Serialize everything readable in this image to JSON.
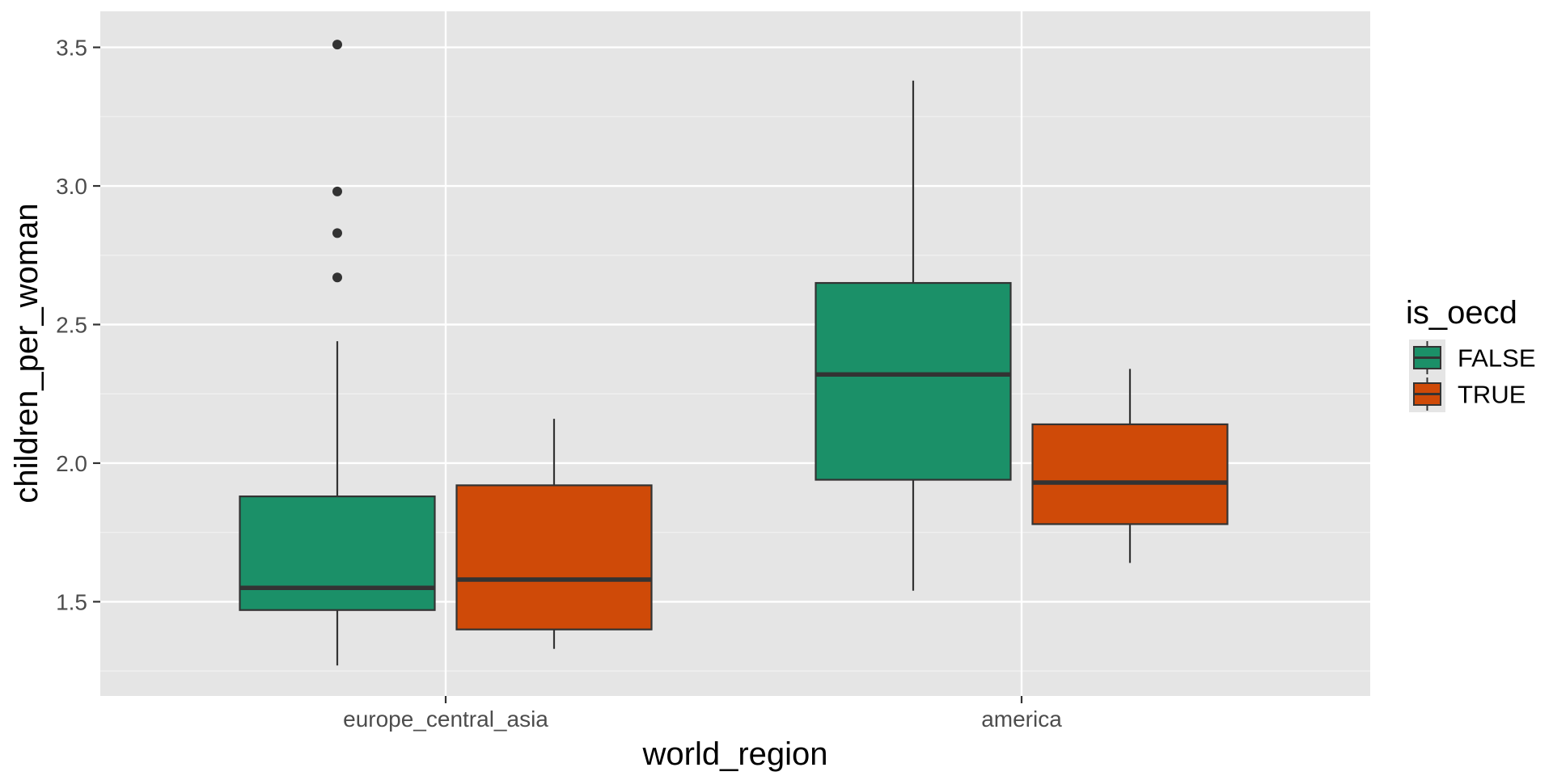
{
  "chart_data": {
    "type": "boxplot",
    "xlabel": "world_region",
    "ylabel": "children_per_woman",
    "categories": [
      "europe_central_asia",
      "america"
    ],
    "y_ticks": [
      1.5,
      2.0,
      2.5,
      3.0,
      3.5
    ],
    "y_tick_labels": [
      "1.5",
      "2.0",
      "2.5",
      "3.0",
      "3.5"
    ],
    "ylim": [
      1.16,
      3.63
    ],
    "grid": true,
    "legend": {
      "title": "is_oecd",
      "placement": "right",
      "entries": [
        "FALSE",
        "TRUE"
      ]
    },
    "series": [
      {
        "name": "FALSE",
        "color": "#1b9068",
        "boxes": [
          {
            "category": "europe_central_asia",
            "min": 1.27,
            "q1": 1.47,
            "median": 1.55,
            "q3": 1.88,
            "max": 2.44,
            "outliers": [
              2.67,
              2.83,
              2.98,
              3.51
            ]
          },
          {
            "category": "america",
            "min": 1.54,
            "q1": 1.94,
            "median": 2.32,
            "q3": 2.65,
            "max": 3.38,
            "outliers": []
          }
        ]
      },
      {
        "name": "TRUE",
        "color": "#cf4a08",
        "boxes": [
          {
            "category": "europe_central_asia",
            "min": 1.33,
            "q1": 1.4,
            "median": 1.58,
            "q3": 1.92,
            "max": 2.16,
            "outliers": []
          },
          {
            "category": "america",
            "min": 1.64,
            "q1": 1.78,
            "median": 1.93,
            "q3": 2.14,
            "max": 2.34,
            "outliers": []
          }
        ]
      }
    ]
  }
}
